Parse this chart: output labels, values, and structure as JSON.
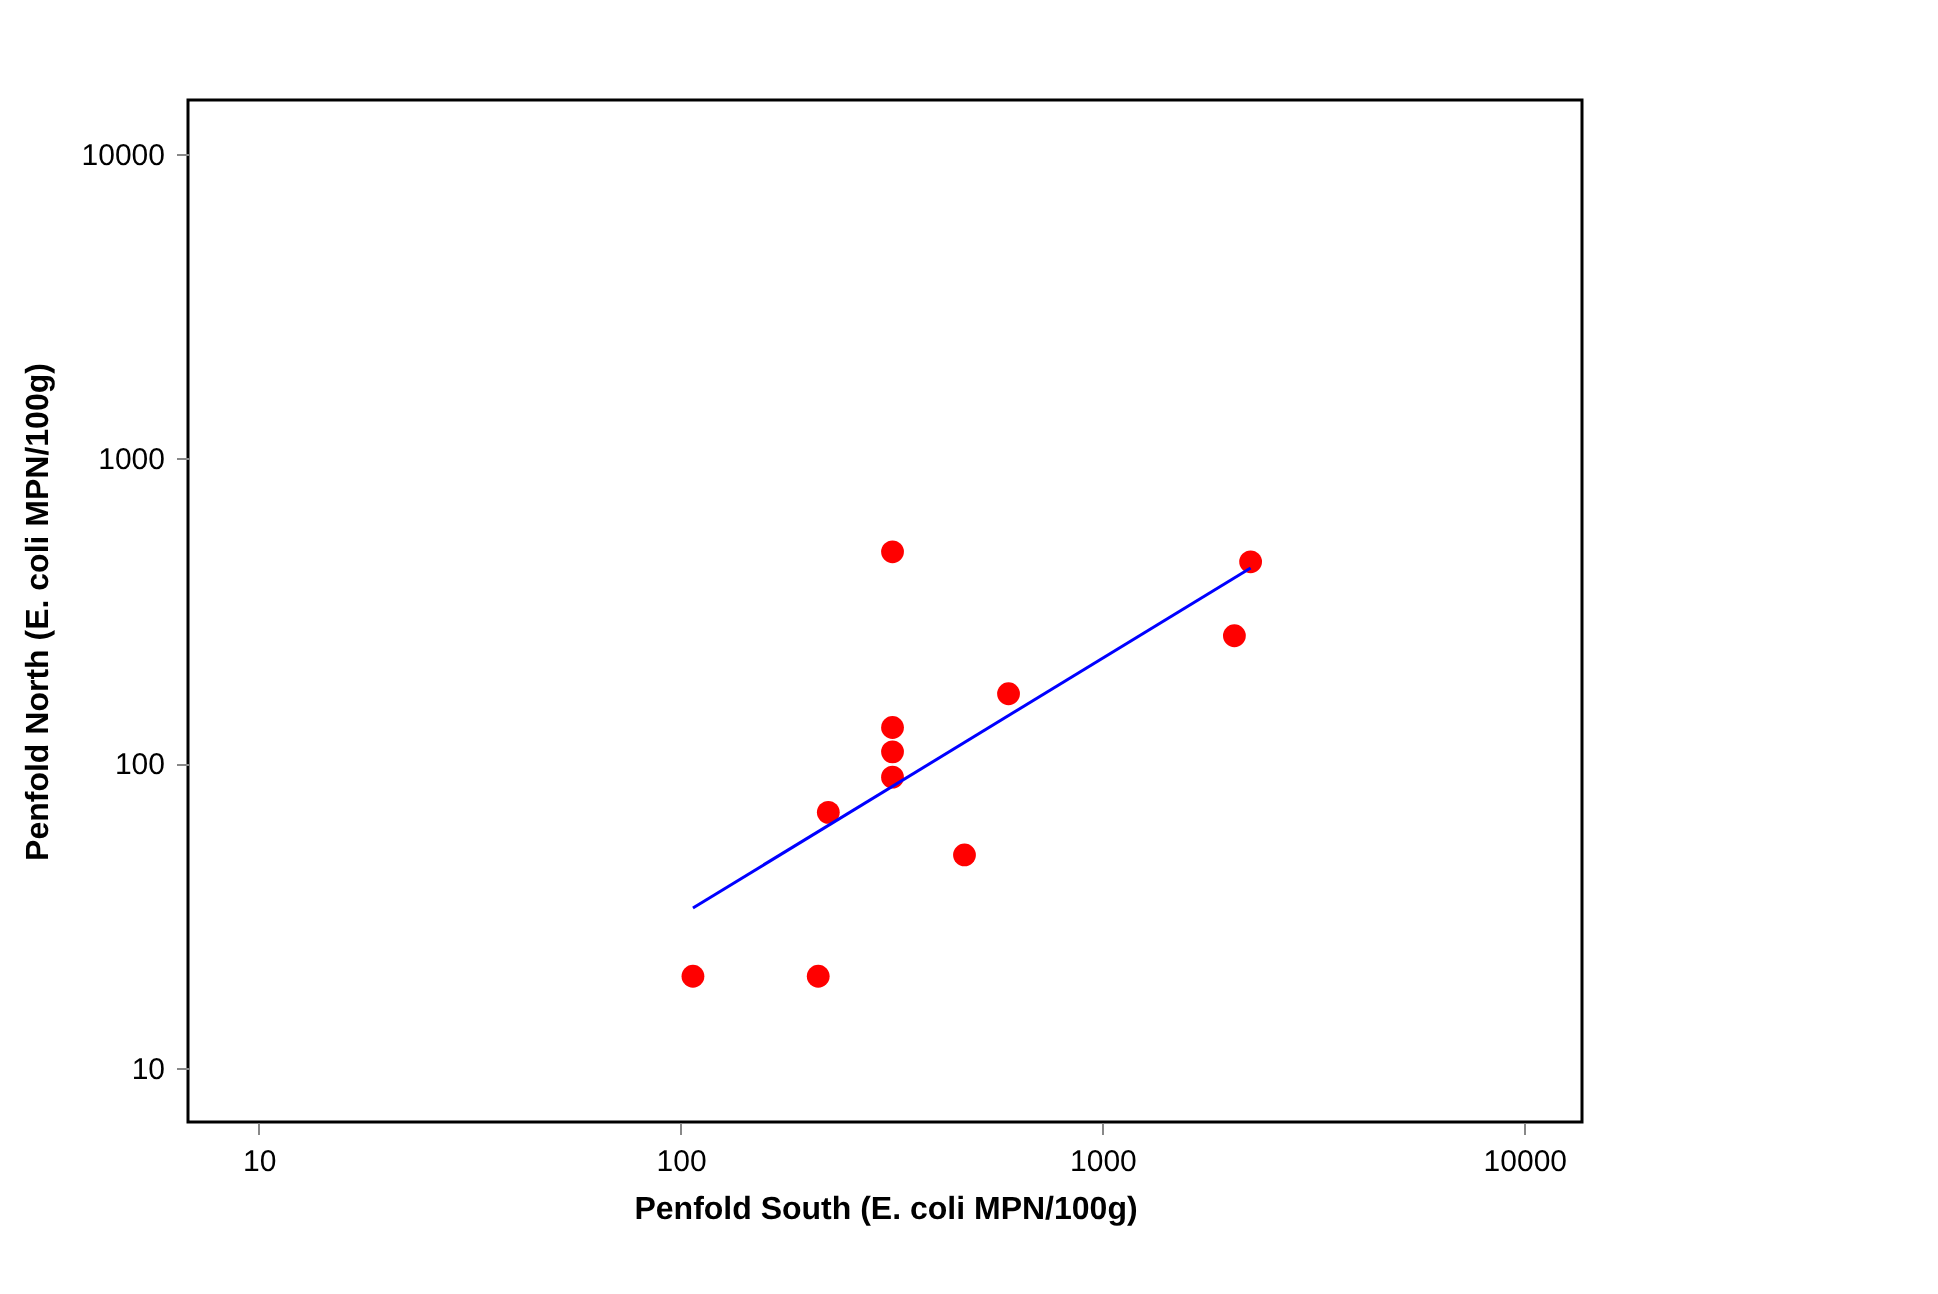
{
  "chart_data": {
    "type": "scatter",
    "xlabel": "Penfold South (E. coli MPN/100g)",
    "ylabel": "Penfold North (E. coli MPN/100g)",
    "log": "xy",
    "grid": false,
    "xlim": [
      6.8,
      13700
    ],
    "ylim": [
      6.65,
      15000
    ],
    "xticks": [
      10,
      100,
      1000,
      10000
    ],
    "yticks": [
      10,
      100,
      1000,
      10000
    ],
    "series": [
      {
        "marker": "circle",
        "color": "#ff0000",
        "x": [
          107,
          212,
          224,
          318,
          318,
          318,
          318,
          471,
          599,
          2055,
          2245
        ],
        "values": [
          20,
          20,
          69,
          494,
          131,
          109,
          90,
          50,
          169,
          262,
          458
        ]
      },
      {
        "type": "line",
        "marker": "none",
        "line_style": "solid",
        "color": "#0000ff",
        "x": [
          107,
          2245
        ],
        "values": [
          33.5,
          437
        ]
      }
    ]
  }
}
